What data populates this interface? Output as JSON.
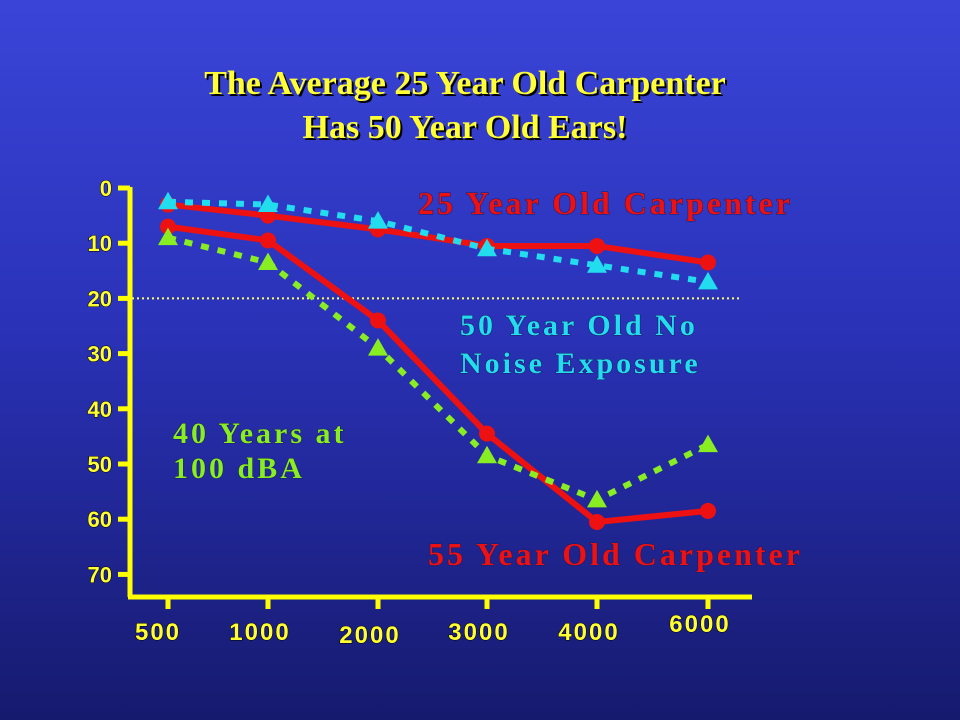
{
  "title_line1": "The Average 25 Year Old Carpenter",
  "title_line2": "Has 50 Year Old Ears!",
  "chart_data": {
    "type": "line",
    "title": "The Average 25 Year Old Carpenter Has 50 Year Old Ears!",
    "xlabel": "",
    "ylabel": "",
    "categories": [
      "500",
      "1000",
      "2000",
      "3000",
      "4000",
      "6000"
    ],
    "y_ticks": [
      0,
      10,
      20,
      30,
      40,
      50,
      60,
      70
    ],
    "ylim": [
      0,
      72
    ],
    "y_inverted": true,
    "reference_line_y": 20,
    "series": [
      {
        "name": "25 Year Old Carpenter",
        "color": "#ee1111",
        "style": "solid",
        "marker": "circle",
        "values": [
          3,
          5,
          7.5,
          10.5,
          10.5,
          13.5
        ]
      },
      {
        "name": "50 Year Old No Noise Exposure",
        "color": "#22ddee",
        "style": "dotted",
        "marker": "triangle",
        "values": [
          2.5,
          3,
          6,
          11,
          14,
          17
        ]
      },
      {
        "name": "55 Year Old Carpenter",
        "color": "#ee1111",
        "style": "solid",
        "marker": "circle",
        "values": [
          7,
          9.5,
          24,
          44.5,
          60.5,
          58.5
        ]
      },
      {
        "name": "40 Years at 100 dBA",
        "color": "#88ee22",
        "style": "dotted",
        "marker": "triangle",
        "values": [
          9,
          13.5,
          29,
          48.5,
          56.5,
          46.5
        ]
      }
    ],
    "annotations": [
      {
        "line1": "25 Year Old Carpenter",
        "line2": "",
        "color": "#ee1111",
        "font": "serif"
      },
      {
        "line1": "50 Year Old No",
        "line2": "Noise Exposure",
        "color": "#22ddee",
        "font": "serif"
      },
      {
        "line1": "40 Years at",
        "line2": "100 dBA",
        "color": "#88ee22",
        "font": "serif"
      },
      {
        "line1": "55 Year Old Carpenter",
        "line2": "",
        "color": "#ee1111",
        "font": "serif"
      }
    ]
  }
}
